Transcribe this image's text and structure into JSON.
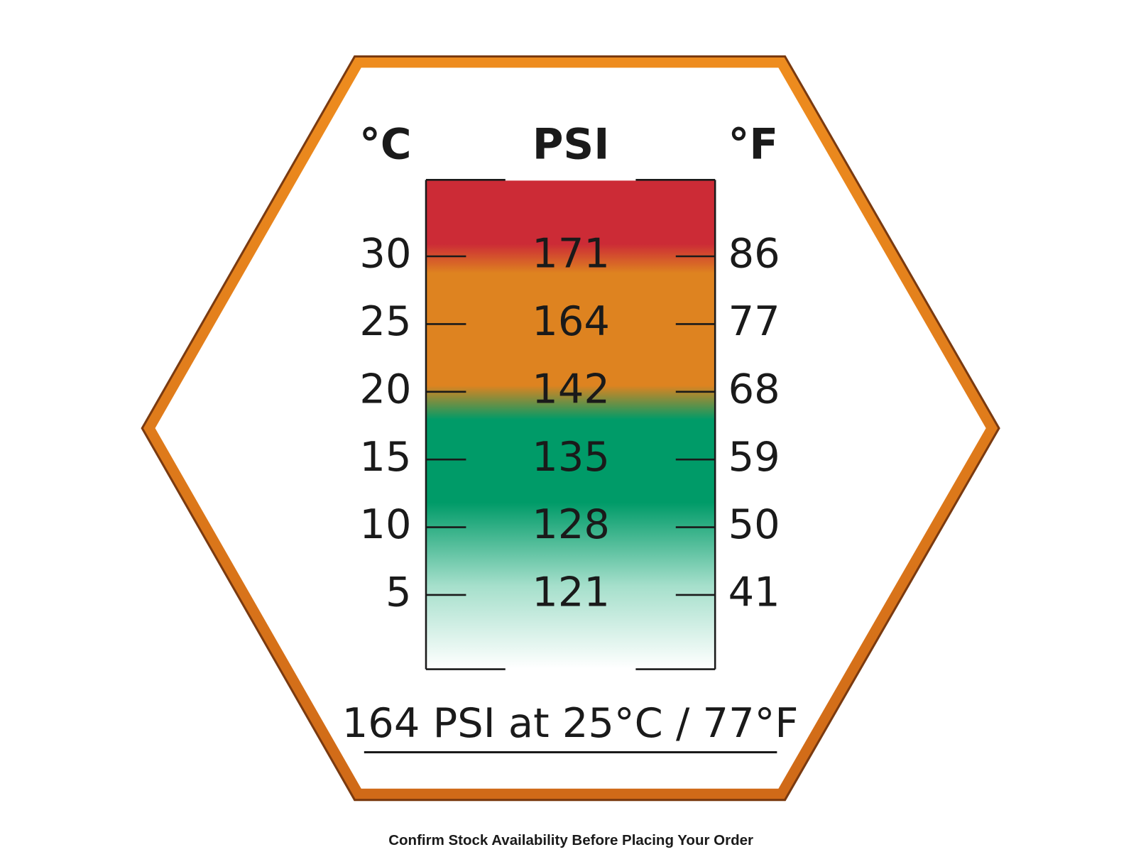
{
  "header": {
    "left": "°C",
    "center": "PSI",
    "right": "°F"
  },
  "rows": [
    {
      "celsius": 30,
      "psi": 171,
      "fahrenheit": 86
    },
    {
      "celsius": 25,
      "psi": 164,
      "fahrenheit": 77
    },
    {
      "celsius": 20,
      "psi": 142,
      "fahrenheit": 68
    },
    {
      "celsius": 15,
      "psi": 135,
      "fahrenheit": 59
    },
    {
      "celsius": 10,
      "psi": 128,
      "fahrenheit": 50
    },
    {
      "celsius": 5,
      "psi": 121,
      "fahrenheit": 41
    }
  ],
  "caption": "164 PSI at 25°C / 77°F",
  "footer": "Confirm Stock Availability Before Placing Your Order"
}
